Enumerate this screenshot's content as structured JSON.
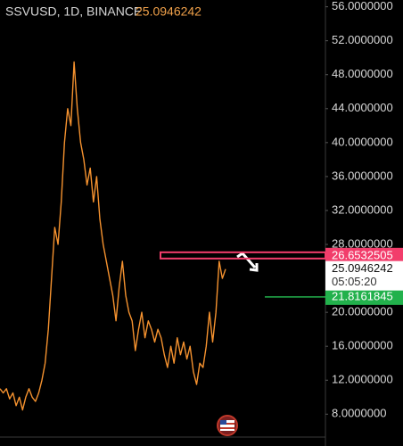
{
  "chart_data": {
    "type": "line",
    "title": "SSVUSD, 1D, BINANCE",
    "last_price": 25.0946242,
    "countdown": "05:05:20",
    "values": [
      11,
      10.5,
      11,
      9.8,
      10.5,
      9,
      10,
      8.5,
      10,
      11,
      10,
      9.5,
      10.5,
      12,
      14,
      18,
      24,
      30,
      28,
      33,
      40,
      44,
      42,
      49.5,
      44,
      40,
      38,
      35,
      37,
      33,
      36,
      31,
      28,
      26,
      24,
      22,
      19,
      23,
      26,
      22,
      20,
      19,
      15.5,
      18,
      20,
      17,
      19,
      18,
      16.5,
      18,
      17,
      15,
      13.5,
      16,
      14,
      17,
      15,
      16.5,
      14.5,
      16,
      13,
      11.5,
      14,
      13.5,
      16,
      20,
      16.5,
      20,
      26,
      24,
      25.0946242
    ],
    "color": "#f5922f",
    "levels": [
      {
        "value": 26.6532505,
        "color": "#f23d6b"
      },
      {
        "value": 21.8161845,
        "color": "#22b14c"
      }
    ],
    "ylim": [
      5.3,
      56.8
    ],
    "yticks": [
      {
        "value": 56,
        "label": "56.0000000"
      },
      {
        "value": 52,
        "label": "52.0000000"
      },
      {
        "value": 48,
        "label": "48.0000000"
      },
      {
        "value": 44,
        "label": "44.0000000"
      },
      {
        "value": 40,
        "label": "40.0000000"
      },
      {
        "value": 36,
        "label": "36.0000000"
      },
      {
        "value": 32,
        "label": "32.0000000"
      },
      {
        "value": 28,
        "label": "28.0000000"
      },
      {
        "value": 20,
        "label": "20.0000000"
      },
      {
        "value": 16,
        "label": "16.0000000"
      },
      {
        "value": 12,
        "label": "12.0000000"
      },
      {
        "value": 8,
        "label": "8.0000000"
      }
    ]
  }
}
